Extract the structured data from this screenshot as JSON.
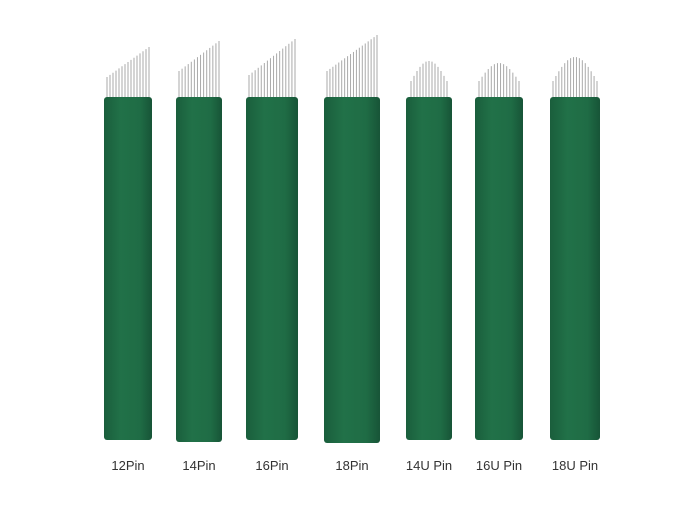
{
  "items": [
    {
      "label": "12Pin"
    },
    {
      "label": "14Pin"
    },
    {
      "label": "16Pin"
    },
    {
      "label": "18Pin"
    },
    {
      "label": "14U Pin"
    },
    {
      "label": "16U Pin"
    },
    {
      "label": "18U Pin"
    }
  ]
}
